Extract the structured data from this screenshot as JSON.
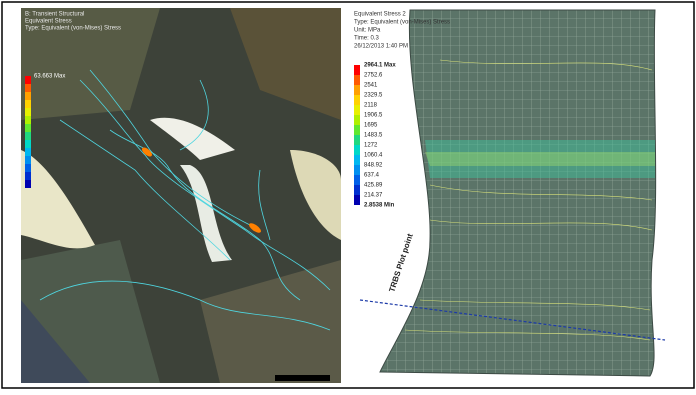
{
  "left_panel": {
    "header": [
      "B: Transient Structural",
      "Equivalent Stress",
      "Type: Equivalent (von-Mises) Stress"
    ],
    "legend_max": "63.663 Max"
  },
  "right_panel": {
    "header": [
      "Equivalent Stress 2",
      "Type: Equivalent (von-Mises) Stress",
      "Unit: MPa",
      "Time: 0.3",
      "26/12/2013 1:40 PM"
    ],
    "legend": [
      "2964.1 Max",
      "2752.6",
      "2541",
      "2329.5",
      "2118",
      "1906.5",
      "1695",
      "1483.5",
      "1272",
      "1060.4",
      "848.92",
      "637.4",
      "425.89",
      "214.37",
      "2.8538 Min"
    ],
    "annotation": "TRBS Plot point"
  }
}
